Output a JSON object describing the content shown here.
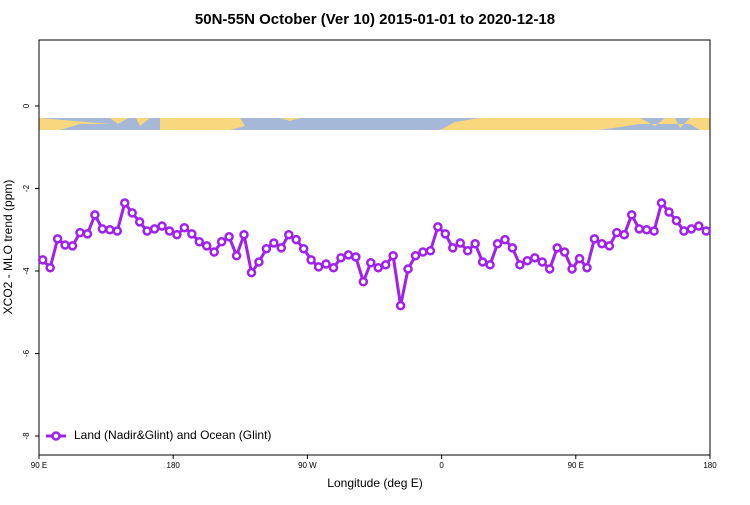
{
  "chart_data": {
    "type": "line",
    "title": "50N-55N October (Ver 10)   2015-01-01 to 2020-12-18",
    "xlabel": "Longitude (deg E)",
    "ylabel": "XCO2 - MLO trend (ppm)",
    "xlim": [
      90,
      540
    ],
    "ylim": [
      -8.46,
      1.6
    ],
    "xticks": [
      {
        "value": 90,
        "label": "90 E"
      },
      180,
      {
        "value": 270,
        "label": "90 W"
      },
      {
        "value": 360,
        "label": "0"
      },
      {
        "value": 450,
        "label": "90 E"
      },
      {
        "value": 540,
        "label": "180"
      }
    ],
    "yticks": [
      0,
      -2,
      -4,
      -6,
      -8
    ],
    "legend": "bottom-left",
    "x": [
      92.5,
      97.5,
      102.5,
      107.5,
      112.5,
      117.5,
      122.5,
      127.5,
      132.5,
      137.5,
      142.5,
      147.5,
      152.5,
      157.5,
      162.5,
      167.5,
      172.5,
      177.5,
      182.5,
      187.5,
      192.5,
      197.5,
      202.5,
      207.5,
      212.5,
      217.5,
      222.5,
      227.5,
      232.5,
      237.5,
      242.5,
      247.5,
      252.5,
      257.5,
      262.5,
      267.5,
      272.5,
      277.5,
      282.5,
      287.5,
      292.5,
      297.5,
      302.5,
      307.5,
      312.5,
      317.5,
      322.5,
      327.5,
      332.5,
      337.5,
      342.5,
      347.5,
      352.5,
      357.5,
      362.5,
      367.5,
      372.5,
      377.5,
      382.5,
      387.5,
      392.5,
      397.5,
      402.5,
      407.5,
      412.5,
      417.5,
      422.5,
      427.5,
      432.5,
      437.5,
      442.5,
      447.5,
      452.5,
      457.5,
      462.5,
      467.5,
      472.5,
      477.5,
      482.5,
      487.5,
      492.5,
      497.5,
      502.5,
      507.5,
      512.5,
      517.5,
      522.5,
      527.5,
      532.5,
      537.5
    ],
    "series": [
      {
        "name": "Land (Nadir&Glint) and Ocean (Glint)",
        "color": "#a020f0",
        "values": [
          -3.73,
          -3.92,
          -3.22,
          -3.37,
          -3.39,
          -3.07,
          -3.1,
          -2.64,
          -2.98,
          -3.0,
          -3.03,
          -2.35,
          -2.59,
          -2.81,
          -3.03,
          -2.98,
          -2.91,
          -3.03,
          -3.12,
          -2.95,
          -3.1,
          -3.29,
          -3.39,
          -3.54,
          -3.29,
          -3.17,
          -3.63,
          -3.12,
          -4.04,
          -3.78,
          -3.46,
          -3.32,
          -3.44,
          -3.12,
          -3.24,
          -3.46,
          -3.73,
          -3.9,
          -3.83,
          -3.92,
          -3.68,
          -3.61,
          -3.66,
          -4.26,
          -3.8,
          -3.92,
          -3.85,
          -3.63,
          -4.84,
          -3.95,
          -3.63,
          -3.54,
          -3.51,
          -2.93,
          -3.1,
          -3.44,
          -3.32,
          -3.51,
          -3.34,
          -3.78,
          -3.85,
          -3.34,
          -3.24,
          -3.44,
          -3.85,
          -3.75,
          -3.68,
          -3.78,
          -3.95,
          -3.44,
          -3.54,
          -3.95,
          -3.7,
          -3.92,
          -3.22,
          -3.34,
          -3.39,
          -3.07,
          -3.12,
          -2.64,
          -2.98,
          -3.0,
          -3.03,
          -2.35,
          -2.57,
          -2.78,
          -3.03,
          -2.98,
          -2.91,
          -3.03
        ]
      }
    ]
  }
}
